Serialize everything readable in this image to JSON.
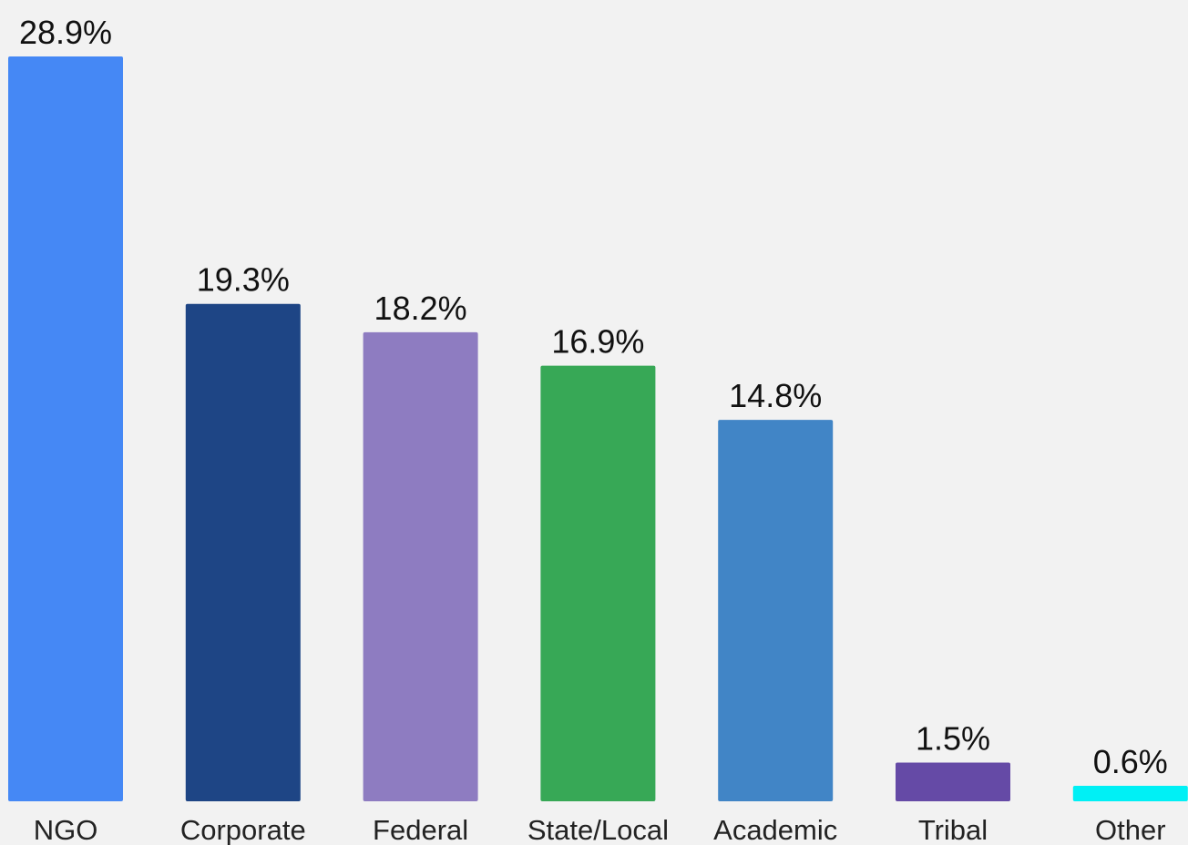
{
  "chart_data": {
    "type": "bar",
    "title": "",
    "xlabel": "",
    "ylabel": "",
    "categories": [
      "NGO",
      "Corporate",
      "Federal",
      "State/Local",
      "Academic",
      "Tribal",
      "Other"
    ],
    "values": [
      28.9,
      19.3,
      18.2,
      16.9,
      14.8,
      1.5,
      0.6
    ],
    "value_labels": [
      "28.9%",
      "19.3%",
      "18.2%",
      "16.9%",
      "14.8%",
      "1.5%",
      "0.6%"
    ],
    "colors": [
      "#4588f5",
      "#1e4585",
      "#8e7cc1",
      "#37a856",
      "#4185c6",
      "#654aa6",
      "#00f0f5"
    ],
    "ylim": [
      0,
      28.9
    ],
    "grid": false,
    "legend": "none"
  }
}
